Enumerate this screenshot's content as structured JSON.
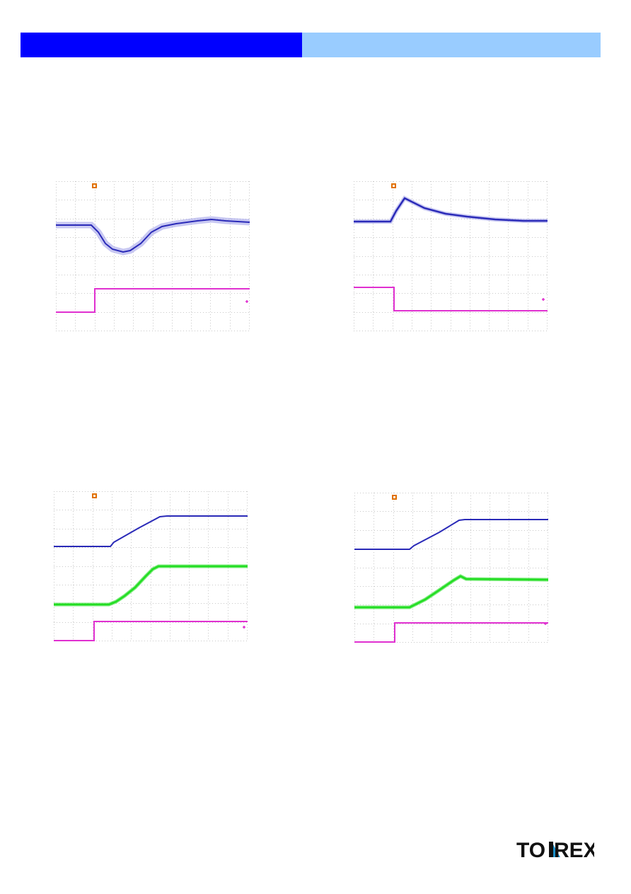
{
  "colors": {
    "header_left": "#0000ff",
    "header_right": "#99ccff",
    "grid": "#c8c8c8",
    "trace_blue": "#2a2ab8",
    "trace_blue_noise": "#9a9ae8",
    "trace_magenta": "#e030d0",
    "trace_green": "#22dd22",
    "trigger_marker": "#e07000",
    "logo_dark": "#111111",
    "logo_accent": "#1b8fc9"
  },
  "icons": {
    "trigger": "trigger-marker-icon",
    "channel_end": "channel-end-marker-icon"
  },
  "logo": {
    "prefix": "TO",
    "suffix": "REX"
  }
}
